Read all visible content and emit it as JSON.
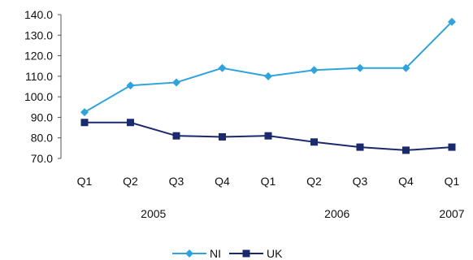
{
  "chart_data": {
    "type": "line",
    "title": "",
    "xlabel": "",
    "ylabel": "",
    "categories": [
      "Q1",
      "Q2",
      "Q3",
      "Q4",
      "Q1",
      "Q2",
      "Q3",
      "Q4",
      "Q1"
    ],
    "year_labels": [
      "2005",
      "2006",
      "2007"
    ],
    "ylim": [
      70,
      140
    ],
    "y_ticks": [
      "140.0",
      "130.0",
      "120.0",
      "110.0",
      "100.0",
      "90.0",
      "80.0",
      "70.0"
    ],
    "grid": false,
    "legend_position": "bottom",
    "series": [
      {
        "name": "NI",
        "color": "#2ea3dc",
        "marker": "diamond",
        "values": [
          92.5,
          105.5,
          107.0,
          114.0,
          110.0,
          113.0,
          114.0,
          114.0,
          136.5
        ]
      },
      {
        "name": "UK",
        "color": "#1a2a6c",
        "marker": "square",
        "values": [
          87.5,
          87.5,
          81.0,
          80.5,
          81.0,
          78.0,
          75.5,
          74.0,
          75.5
        ]
      }
    ]
  }
}
